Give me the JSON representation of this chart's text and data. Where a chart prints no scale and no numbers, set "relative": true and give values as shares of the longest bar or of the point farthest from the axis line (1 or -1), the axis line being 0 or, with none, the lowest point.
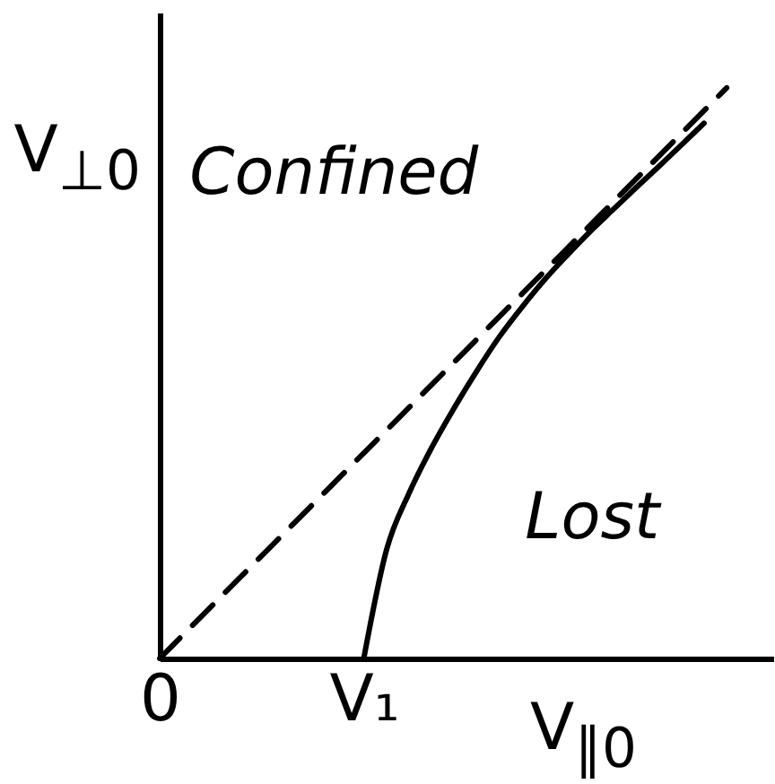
{
  "chart_data": {
    "type": "line",
    "relative": true,
    "xlabel": "V$_{∥0}$",
    "ylabel": "V$_{⊥0}$",
    "categories": [
      "0",
      null,
      null,
      null,
      null,
      null,
      null,
      null,
      null,
      "V₁",
      null,
      null,
      null,
      null,
      null,
      null,
      null,
      null,
      null,
      null,
      null,
      null,
      null,
      null,
      null,
      null
    ],
    "series": [
      {
        "color": "#000000",
        "line_style": "dashed",
        "values": [
          0,
          0.04,
          0.08,
          0.12,
          0.16,
          0.2,
          0.24,
          0.28,
          0.32,
          0.36,
          0.4,
          0.44,
          0.48,
          0.52,
          0.56,
          0.6,
          0.64,
          0.68,
          0.72,
          0.76,
          0.8,
          0.84,
          0.88,
          0.92,
          0.96,
          1.0
        ]
      },
      {
        "color": "#000000",
        "line_style": "solid",
        "values": [
          null,
          null,
          null,
          null,
          null,
          null,
          null,
          null,
          null,
          0,
          0.19,
          0.29,
          0.37,
          0.44,
          0.505,
          0.565,
          0.617,
          0.665,
          0.708,
          0.749,
          0.787,
          0.825,
          0.862,
          0.9,
          0.938,
          null
        ]
      }
    ],
    "annotations": [
      "Confined",
      "Lost"
    ]
  }
}
